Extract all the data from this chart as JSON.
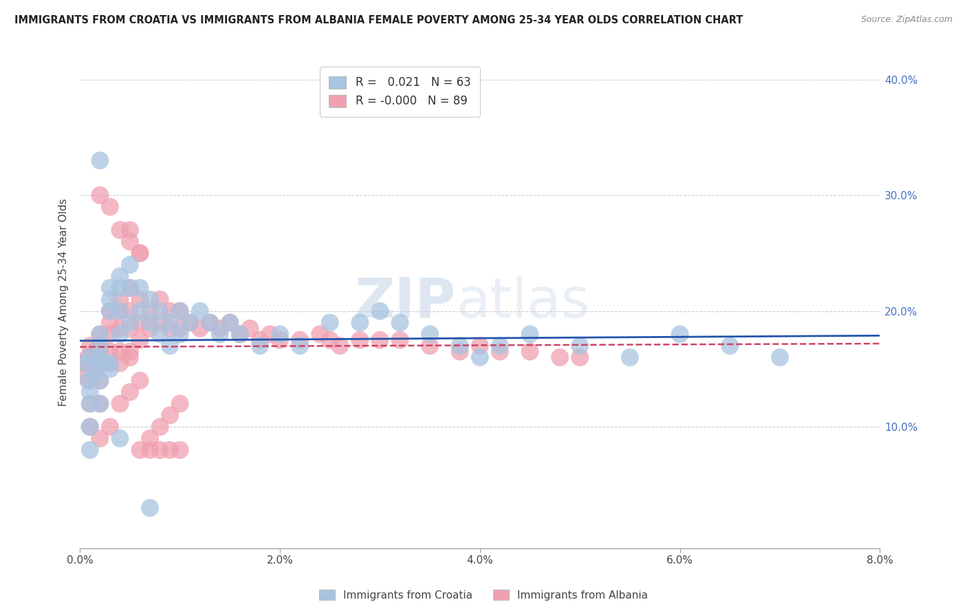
{
  "title": "IMMIGRANTS FROM CROATIA VS IMMIGRANTS FROM ALBANIA FEMALE POVERTY AMONG 25-34 YEAR OLDS CORRELATION CHART",
  "source": "Source: ZipAtlas.com",
  "xlabel_croatia": "Immigrants from Croatia",
  "xlabel_albania": "Immigrants from Albania",
  "ylabel": "Female Poverty Among 25-34 Year Olds",
  "croatia_R": 0.021,
  "croatia_N": 63,
  "albania_R": -0.0,
  "albania_N": 89,
  "xlim": [
    0.0,
    0.08
  ],
  "ylim": [
    -0.005,
    0.42
  ],
  "yticks": [
    0.1,
    0.2,
    0.3,
    0.4
  ],
  "xticks": [
    0.0,
    0.02,
    0.04,
    0.06,
    0.08
  ],
  "watermark_zip": "ZIP",
  "watermark_atlas": "atlas",
  "croatia_color": "#a8c4e0",
  "albania_color": "#f0a0b0",
  "croatia_line_color": "#2255aa",
  "albania_line_color": "#cc4466",
  "background_color": "#ffffff",
  "grid_color": "#cccccc",
  "croatia_x": [
    0.0005,
    0.0008,
    0.001,
    0.001,
    0.001,
    0.001,
    0.001,
    0.0015,
    0.0015,
    0.002,
    0.002,
    0.002,
    0.002,
    0.002,
    0.0025,
    0.003,
    0.003,
    0.003,
    0.003,
    0.004,
    0.004,
    0.004,
    0.004,
    0.005,
    0.005,
    0.005,
    0.006,
    0.006,
    0.007,
    0.007,
    0.008,
    0.008,
    0.009,
    0.009,
    0.01,
    0.01,
    0.011,
    0.012,
    0.013,
    0.014,
    0.015,
    0.016,
    0.018,
    0.02,
    0.022,
    0.025,
    0.028,
    0.03,
    0.032,
    0.035,
    0.038,
    0.04,
    0.042,
    0.045,
    0.05,
    0.055,
    0.06,
    0.065,
    0.07,
    0.002,
    0.003,
    0.004,
    0.007
  ],
  "croatia_y": [
    0.155,
    0.14,
    0.16,
    0.13,
    0.12,
    0.1,
    0.08,
    0.155,
    0.145,
    0.17,
    0.18,
    0.16,
    0.14,
    0.12,
    0.155,
    0.22,
    0.21,
    0.2,
    0.15,
    0.23,
    0.22,
    0.2,
    0.18,
    0.24,
    0.22,
    0.19,
    0.22,
    0.2,
    0.21,
    0.19,
    0.2,
    0.18,
    0.19,
    0.17,
    0.2,
    0.18,
    0.19,
    0.2,
    0.19,
    0.18,
    0.19,
    0.18,
    0.17,
    0.18,
    0.17,
    0.19,
    0.19,
    0.2,
    0.19,
    0.18,
    0.17,
    0.16,
    0.17,
    0.18,
    0.17,
    0.16,
    0.18,
    0.17,
    0.16,
    0.33,
    0.155,
    0.09,
    0.03
  ],
  "albania_x": [
    0.0003,
    0.0005,
    0.0008,
    0.001,
    0.001,
    0.001,
    0.001,
    0.001,
    0.0012,
    0.0015,
    0.0015,
    0.002,
    0.002,
    0.002,
    0.002,
    0.002,
    0.002,
    0.0025,
    0.003,
    0.003,
    0.003,
    0.003,
    0.003,
    0.004,
    0.004,
    0.004,
    0.004,
    0.005,
    0.005,
    0.005,
    0.005,
    0.006,
    0.006,
    0.006,
    0.007,
    0.007,
    0.008,
    0.008,
    0.009,
    0.009,
    0.01,
    0.01,
    0.011,
    0.012,
    0.013,
    0.014,
    0.015,
    0.016,
    0.017,
    0.018,
    0.019,
    0.02,
    0.022,
    0.024,
    0.025,
    0.026,
    0.028,
    0.03,
    0.032,
    0.035,
    0.038,
    0.04,
    0.042,
    0.045,
    0.048,
    0.05,
    0.002,
    0.003,
    0.004,
    0.005,
    0.006,
    0.007,
    0.008,
    0.009,
    0.01,
    0.002,
    0.003,
    0.004,
    0.005,
    0.006,
    0.004,
    0.005,
    0.006,
    0.007,
    0.008,
    0.009,
    0.01,
    0.005,
    0.006
  ],
  "albania_y": [
    0.155,
    0.145,
    0.16,
    0.17,
    0.155,
    0.14,
    0.12,
    0.1,
    0.155,
    0.165,
    0.155,
    0.18,
    0.17,
    0.165,
    0.155,
    0.14,
    0.12,
    0.155,
    0.2,
    0.19,
    0.18,
    0.165,
    0.155,
    0.21,
    0.2,
    0.185,
    0.165,
    0.22,
    0.2,
    0.185,
    0.165,
    0.21,
    0.19,
    0.175,
    0.2,
    0.185,
    0.21,
    0.19,
    0.2,
    0.185,
    0.2,
    0.185,
    0.19,
    0.185,
    0.19,
    0.185,
    0.19,
    0.18,
    0.185,
    0.175,
    0.18,
    0.175,
    0.175,
    0.18,
    0.175,
    0.17,
    0.175,
    0.175,
    0.175,
    0.17,
    0.165,
    0.17,
    0.165,
    0.165,
    0.16,
    0.16,
    0.09,
    0.1,
    0.12,
    0.13,
    0.14,
    0.09,
    0.1,
    0.11,
    0.12,
    0.3,
    0.29,
    0.27,
    0.26,
    0.25,
    0.155,
    0.16,
    0.08,
    0.08,
    0.08,
    0.08,
    0.08,
    0.27,
    0.25
  ]
}
